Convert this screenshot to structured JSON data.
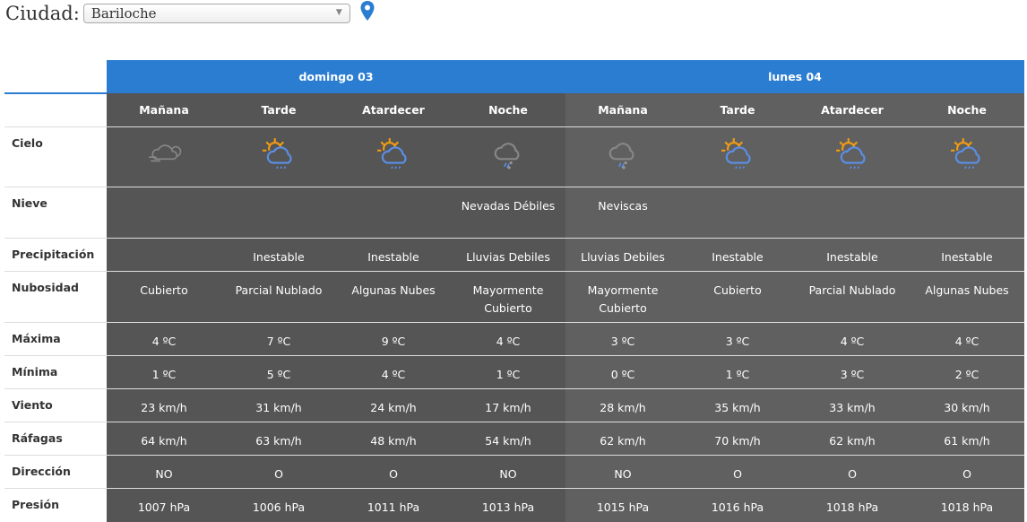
{
  "header": {
    "city_label": "Ciudad:",
    "city_value": "Bariloche"
  },
  "colors": {
    "accent": "#2a7dd1",
    "day1_bg": "#555555",
    "day2_bg": "#606060"
  },
  "days": [
    "domingo 03",
    "lunes 04"
  ],
  "periods": [
    "Mañana",
    "Tarde",
    "Atardecer",
    "Noche",
    "Mañana",
    "Tarde",
    "Atardecer",
    "Noche"
  ],
  "rows": {
    "cielo": {
      "label": "Cielo",
      "icons": [
        "cloudy-wind-icon",
        "partly-cloudy-rain-icon",
        "partly-cloudy-rain-icon",
        "cloud-sleet-icon",
        "cloud-sleet-icon",
        "partly-cloudy-rain-icon",
        "partly-cloudy-rain-icon",
        "partly-cloudy-rain-icon"
      ]
    },
    "nieve": {
      "label": "Nieve",
      "values": [
        "",
        "",
        "",
        "Nevadas Débiles",
        "Neviscas",
        "",
        "",
        ""
      ]
    },
    "precipitacion": {
      "label": "Precipitación",
      "values": [
        "",
        "Inestable",
        "Inestable",
        "Lluvias Debiles",
        "Lluvias Debiles",
        "Inestable",
        "Inestable",
        "Inestable"
      ]
    },
    "nubosidad": {
      "label": "Nubosidad",
      "values": [
        "Cubierto",
        "Parcial Nublado",
        "Algunas Nubes",
        "Mayormente Cubierto",
        "Mayormente Cubierto",
        "Cubierto",
        "Parcial Nublado",
        "Algunas Nubes"
      ]
    },
    "maxima": {
      "label": "Máxima",
      "values": [
        "4 ºC",
        "7 ºC",
        "9 ºC",
        "4 ºC",
        "3 ºC",
        "3 ºC",
        "4 ºC",
        "4 ºC"
      ]
    },
    "minima": {
      "label": "Mínima",
      "values": [
        "1 ºC",
        "5 ºC",
        "4 ºC",
        "1 ºC",
        "0 ºC",
        "1 ºC",
        "3 ºC",
        "2 ºC"
      ]
    },
    "viento": {
      "label": "Viento",
      "values": [
        "23 km/h",
        "31 km/h",
        "24 km/h",
        "17 km/h",
        "28 km/h",
        "35 km/h",
        "33 km/h",
        "30 km/h"
      ]
    },
    "rafagas": {
      "label": "Ráfagas",
      "values": [
        "64 km/h",
        "63 km/h",
        "48 km/h",
        "54 km/h",
        "62 km/h",
        "70 km/h",
        "62 km/h",
        "61 km/h"
      ]
    },
    "direccion": {
      "label": "Dirección",
      "values": [
        "NO",
        "O",
        "O",
        "NO",
        "NO",
        "O",
        "O",
        "O"
      ]
    },
    "presion": {
      "label": "Presión",
      "values": [
        "1007 hPa",
        "1006 hPa",
        "1011 hPa",
        "1013 hPa",
        "1015 hPa",
        "1016 hPa",
        "1018 hPa",
        "1018 hPa"
      ]
    }
  }
}
